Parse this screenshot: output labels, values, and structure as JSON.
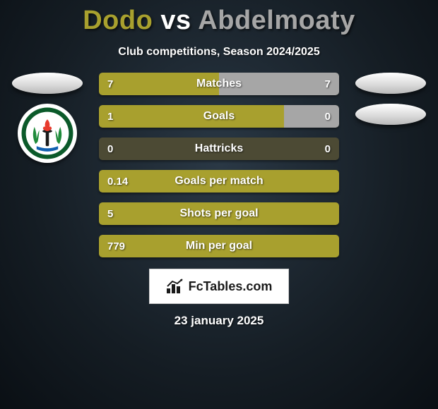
{
  "title": {
    "player1": "Dodo",
    "vs": "vs",
    "player2": "Abdelmoaty",
    "player1_color": "#a8a02e",
    "vs_color": "#ffffff",
    "player2_color": "#a6a6a6"
  },
  "subtitle": "Club competitions, Season 2024/2025",
  "side": {
    "ellipse_gradient_top": "#ffffff",
    "ellipse_gradient_bottom": "#b9b9b9",
    "logo_ring_color": "#0b5a2a",
    "logo_ring_inner": "#ffffff",
    "logo_torch_handle": "#1a1a1a",
    "logo_flame": "#e83b2e",
    "logo_laurel": "#1f8b3b",
    "logo_ribbon": "#1060b0"
  },
  "stats": {
    "bar_track_color": "#4c4a34",
    "left_bar_color": "#a8a02e",
    "right_bar_color": "#a6a6a6",
    "rows": [
      {
        "label": "Matches",
        "left_val": "7",
        "right_val": "7",
        "left_pct": 50,
        "right_pct": 50
      },
      {
        "label": "Goals",
        "left_val": "1",
        "right_val": "0",
        "left_pct": 77,
        "right_pct": 23
      },
      {
        "label": "Hattricks",
        "left_val": "0",
        "right_val": "0",
        "left_pct": 0,
        "right_pct": 0
      },
      {
        "label": "Goals per match",
        "left_val": "0.14",
        "right_val": "",
        "left_pct": 100,
        "right_pct": 0
      },
      {
        "label": "Shots per goal",
        "left_val": "5",
        "right_val": "",
        "left_pct": 100,
        "right_pct": 0
      },
      {
        "label": "Min per goal",
        "left_val": "779",
        "right_val": "",
        "left_pct": 100,
        "right_pct": 0
      }
    ]
  },
  "footer": {
    "brand": "FcTables.com",
    "date": "23 january 2025"
  }
}
